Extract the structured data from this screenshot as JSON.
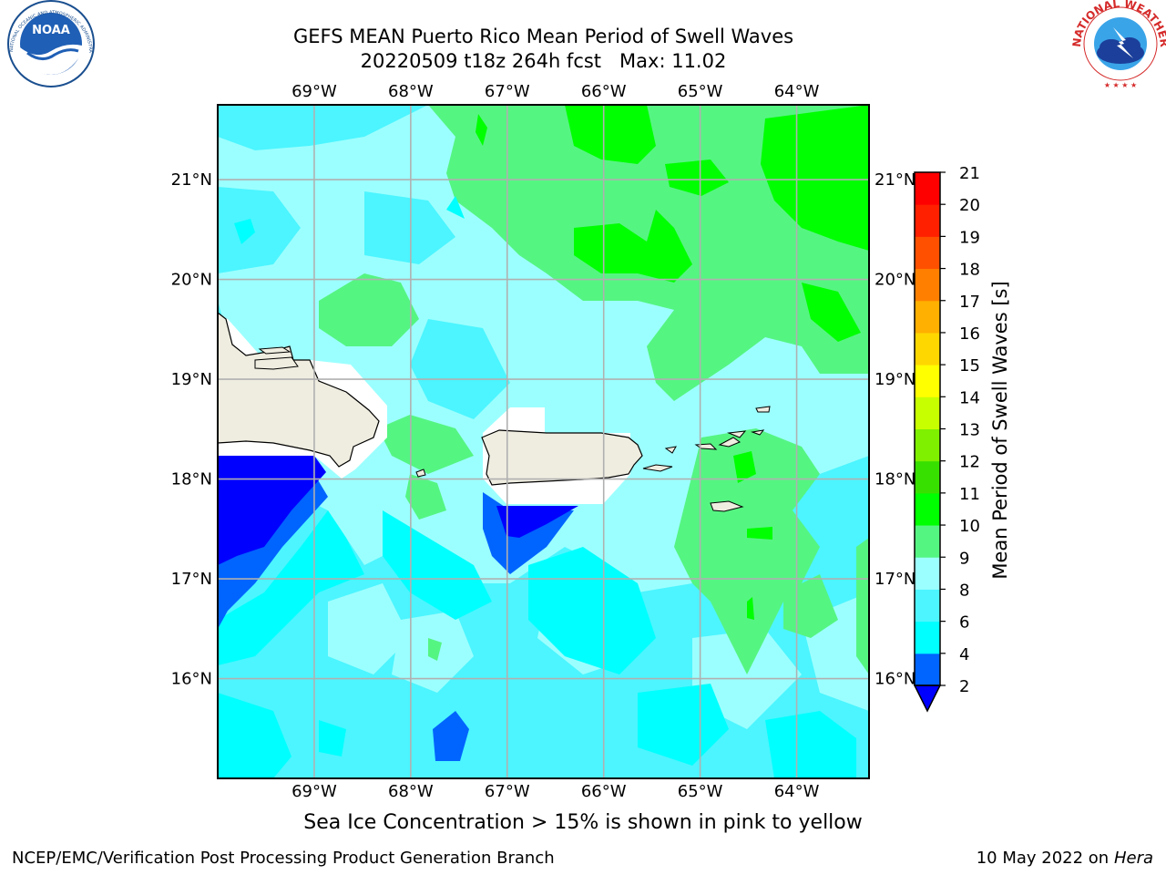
{
  "header": {
    "title_line1": "GEFS MEAN Puerto Rico Mean Period of Swell Waves",
    "title_date": "20220509 t18z 264h fcst",
    "title_max": "Max: 11.02"
  },
  "logos": {
    "left": {
      "name": "NOAA",
      "ring_text": "NATIONAL OCEANIC AND ATMOSPHERIC ADMINISTRATION",
      "ring_text_bottom": "U.S. DEPARTMENT OF COMMERCE"
    },
    "right": {
      "ring_text": "NATIONAL WEATHER SERVICE"
    }
  },
  "map": {
    "lon_labels": [
      "69°W",
      "68°W",
      "67°W",
      "66°W",
      "65°W",
      "64°W"
    ],
    "lat_labels": [
      "21°N",
      "20°N",
      "19°N",
      "18°N",
      "17°N",
      "16°N"
    ],
    "lon_range": [
      -70.0,
      -63.25
    ],
    "lat_range": [
      15.0,
      21.75
    ],
    "grid": true
  },
  "colorbar": {
    "label": "Mean Period of Swell Waves [s]",
    "ticks": [
      "21",
      "20",
      "19",
      "18",
      "17",
      "16",
      "15",
      "14",
      "13",
      "12",
      "11",
      "10",
      "9",
      "8",
      "6",
      "4",
      "2"
    ],
    "levels": [
      2,
      4,
      6,
      8,
      9,
      10,
      11,
      12,
      13,
      14,
      15,
      16,
      17,
      18,
      19,
      20,
      21
    ],
    "colors": [
      "#0064ff",
      "#00ffff",
      "#4cf5ff",
      "#9cffff",
      "#55f582",
      "#00ff00",
      "#38e000",
      "#7ff000",
      "#c8ff00",
      "#ffff00",
      "#ffd700",
      "#ffb000",
      "#ff8000",
      "#ff5000",
      "#ff2000",
      "#ff0000"
    ],
    "under_color": "#0000ff"
  },
  "footer": {
    "caption": "Sea Ice Concentration > 15% is shown in pink to yellow",
    "left": "NCEP/EMC/Verification Post Processing Product Generation Branch",
    "right_date": "10 May 2022 on",
    "right_machine": "Hera"
  },
  "colors": {
    "land": "#efede0",
    "masked": "#ffffff",
    "grid": "#b0b0b0"
  }
}
